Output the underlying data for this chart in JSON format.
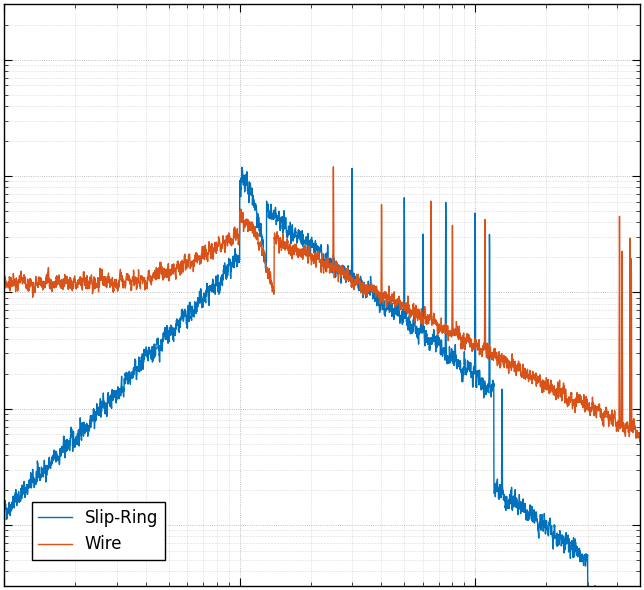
{
  "line_slip_ring_color": "#0072BD",
  "line_wire_color": "#D95319",
  "line_width": 1.0,
  "background_color": "#ffffff",
  "grid_color": "#aaaaaa",
  "legend_labels": [
    "Slip-Ring",
    "Wire"
  ],
  "figsize": [
    6.44,
    5.9
  ],
  "dpi": 100,
  "xlim": [
    1,
    500
  ],
  "ylim": [
    3e-05,
    3.0
  ]
}
